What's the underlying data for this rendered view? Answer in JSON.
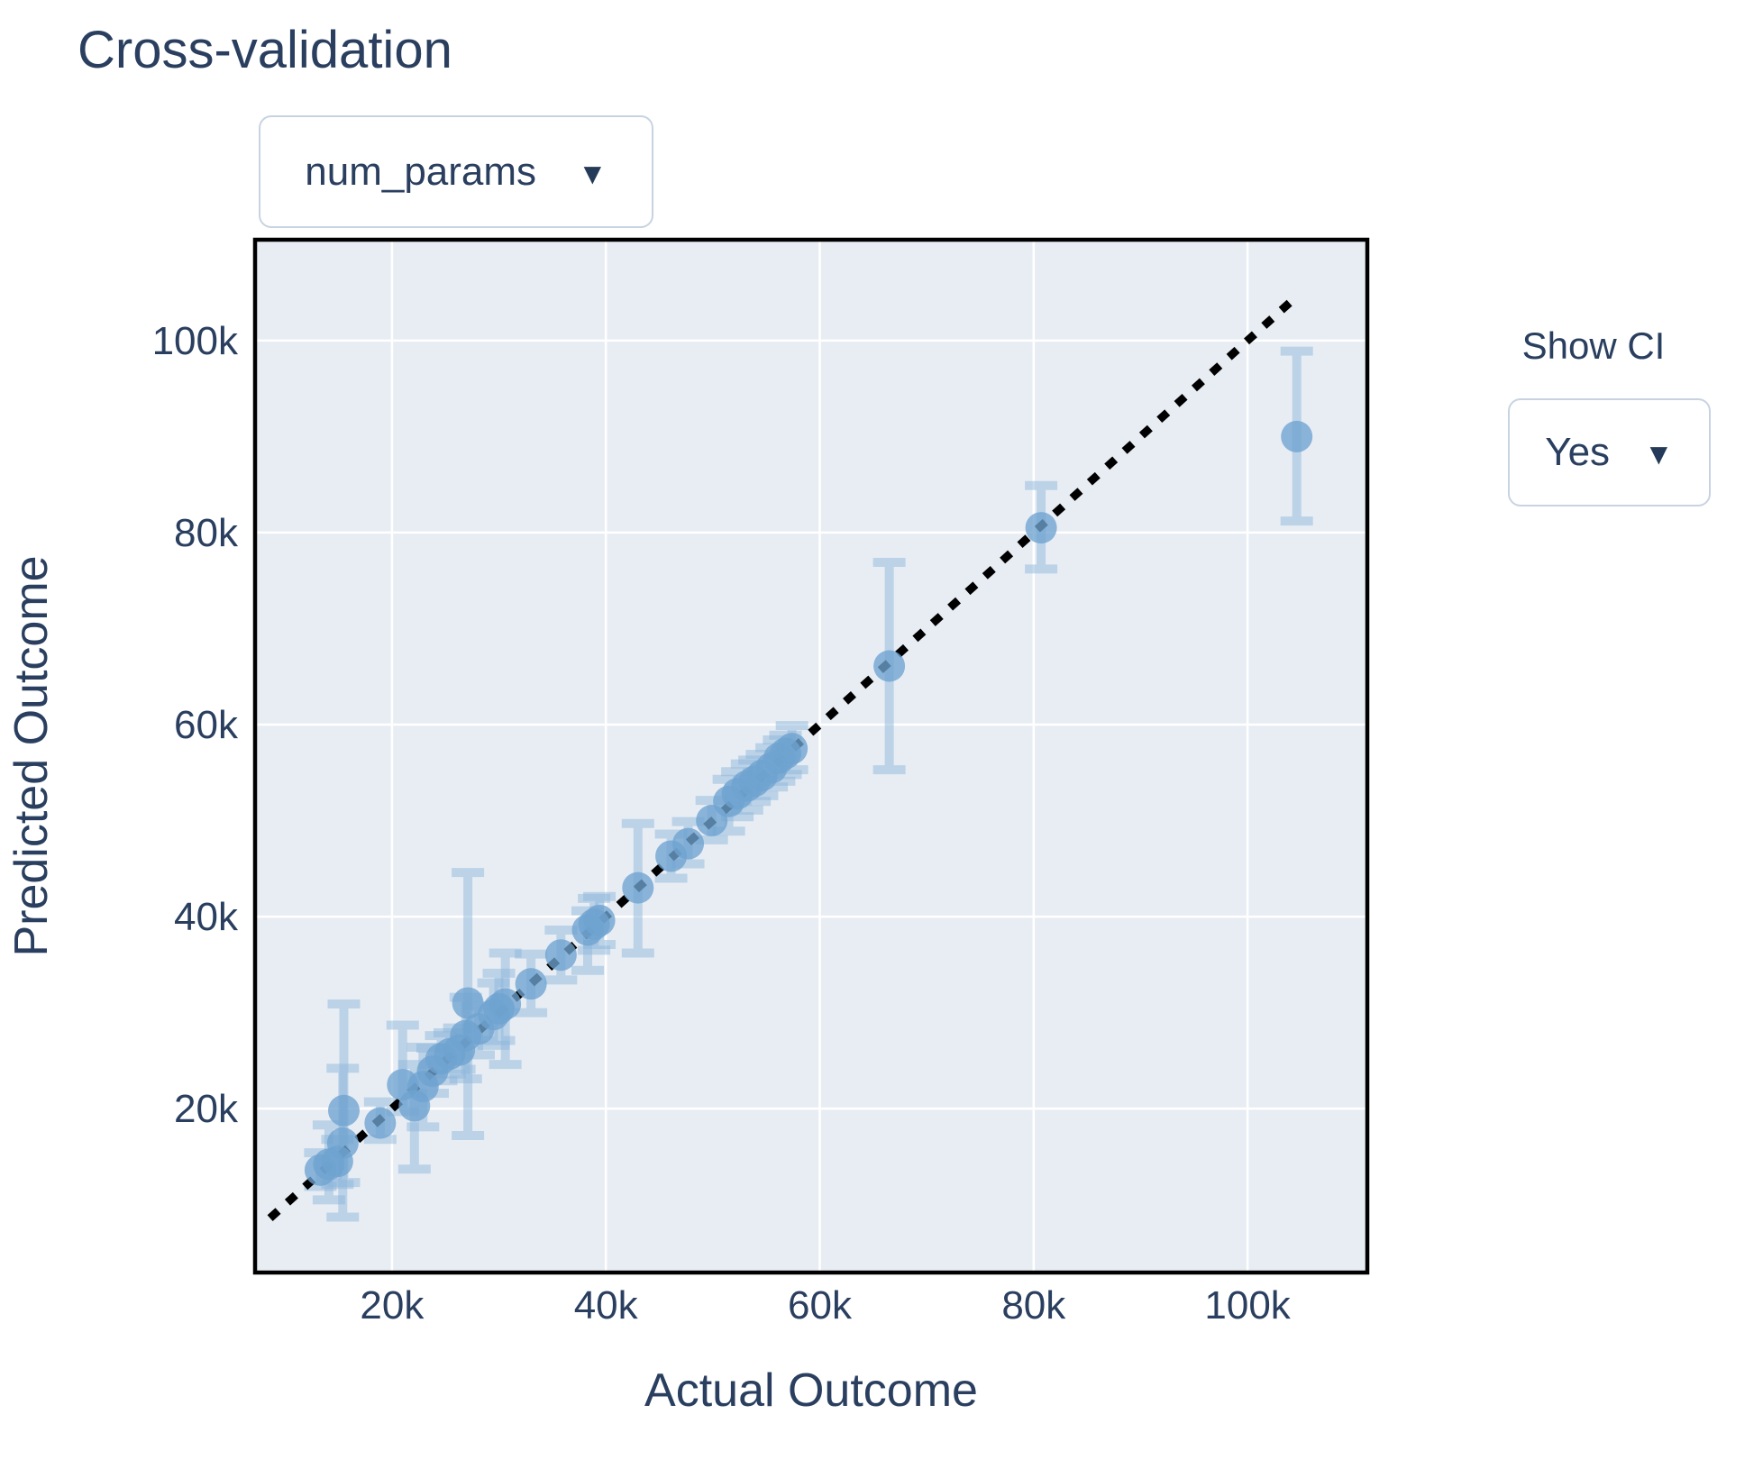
{
  "title": "Cross-validation",
  "controls": {
    "param_dropdown": {
      "value": "num_params",
      "caret": "▼"
    },
    "show_ci": {
      "label": "Show CI",
      "value": "Yes",
      "caret": "▼"
    }
  },
  "chart_data": {
    "type": "scatter",
    "title": "Cross-validation",
    "xlabel": "Actual Outcome",
    "ylabel": "Predicted Outcome",
    "xlim": [
      7200,
      111200
    ],
    "ylim": [
      2930,
      110500
    ],
    "x_tick_values": [
      20000,
      40000,
      60000,
      80000,
      100000
    ],
    "x_tick_labels": [
      "20k",
      "40k",
      "60k",
      "80k",
      "100k"
    ],
    "y_tick_values": [
      20000,
      40000,
      60000,
      80000,
      100000
    ],
    "y_tick_labels": [
      "20k",
      "40k",
      "60k",
      "80k",
      "100k"
    ],
    "grid": true,
    "legend": "none",
    "identity_line": {
      "style": "dotted",
      "color": "#000000",
      "from": 8600,
      "to": 104400
    },
    "colors": {
      "plot_bg": "#e8edf4",
      "grid": "#ffffff",
      "border": "#000000",
      "marker": "#6ea3cf",
      "marker_opacity": 0.78,
      "error_bar": "#8fb8dc",
      "error_opacity": 0.5,
      "text": "#2a3f5f"
    },
    "points": [
      {
        "x": 13300,
        "y": 13600,
        "ci_low": 11900,
        "ci_high": 15400
      },
      {
        "x": 14100,
        "y": 14200,
        "ci_low": 10500,
        "ci_high": 18300
      },
      {
        "x": 14900,
        "y": 14500,
        "ci_low": 12100,
        "ci_high": 16800
      },
      {
        "x": 15400,
        "y": 16400,
        "ci_low": 8700,
        "ci_high": 24200
      },
      {
        "x": 15500,
        "y": 19800,
        "ci_low": 12300,
        "ci_high": 30900
      },
      {
        "x": 18900,
        "y": 18500,
        "ci_low": 16800,
        "ci_high": 20700
      },
      {
        "x": 21000,
        "y": 22500,
        "ci_low": 19700,
        "ci_high": 28700
      },
      {
        "x": 22100,
        "y": 20300,
        "ci_low": 13700,
        "ci_high": 24600
      },
      {
        "x": 22900,
        "y": 22300,
        "ci_low": 18100,
        "ci_high": 26400
      },
      {
        "x": 23800,
        "y": 23900,
        "ci_low": 21600,
        "ci_high": 26300
      },
      {
        "x": 24600,
        "y": 25200,
        "ci_low": 22900,
        "ci_high": 27600
      },
      {
        "x": 25400,
        "y": 25700,
        "ci_low": 23600,
        "ci_high": 27900
      },
      {
        "x": 26300,
        "y": 26100,
        "ci_low": 24100,
        "ci_high": 28400
      },
      {
        "x": 26900,
        "y": 27600,
        "ci_low": 23100,
        "ci_high": 31600
      },
      {
        "x": 27100,
        "y": 31000,
        "ci_low": 17200,
        "ci_high": 44600
      },
      {
        "x": 28100,
        "y": 28300,
        "ci_low": 25600,
        "ci_high": 30700
      },
      {
        "x": 29500,
        "y": 29800,
        "ci_low": 26600,
        "ci_high": 33100
      },
      {
        "x": 30000,
        "y": 30400,
        "ci_low": 27100,
        "ci_high": 34100
      },
      {
        "x": 30600,
        "y": 30900,
        "ci_low": 24600,
        "ci_high": 36200
      },
      {
        "x": 33000,
        "y": 33000,
        "ci_low": 30000,
        "ci_high": 36100
      },
      {
        "x": 35800,
        "y": 36000,
        "ci_low": 33400,
        "ci_high": 38600
      },
      {
        "x": 38300,
        "y": 38600,
        "ci_low": 34400,
        "ci_high": 40600
      },
      {
        "x": 38900,
        "y": 39200,
        "ci_low": 36500,
        "ci_high": 41900
      },
      {
        "x": 39400,
        "y": 39600,
        "ci_low": 37100,
        "ci_high": 42100
      },
      {
        "x": 43000,
        "y": 43000,
        "ci_low": 36200,
        "ci_high": 49700
      },
      {
        "x": 46100,
        "y": 46300,
        "ci_low": 44000,
        "ci_high": 48600
      },
      {
        "x": 47700,
        "y": 47600,
        "ci_low": 45500,
        "ci_high": 49900
      },
      {
        "x": 49900,
        "y": 50000,
        "ci_low": 48000,
        "ci_high": 52100
      },
      {
        "x": 51500,
        "y": 52000,
        "ci_low": 48900,
        "ci_high": 54300
      },
      {
        "x": 52300,
        "y": 52800,
        "ci_low": 50400,
        "ci_high": 55100
      },
      {
        "x": 53200,
        "y": 53600,
        "ci_low": 51100,
        "ci_high": 55900
      },
      {
        "x": 53900,
        "y": 54100,
        "ci_low": 52000,
        "ci_high": 56300
      },
      {
        "x": 54600,
        "y": 54700,
        "ci_low": 52600,
        "ci_high": 56900
      },
      {
        "x": 55500,
        "y": 55500,
        "ci_low": 53500,
        "ci_high": 57600
      },
      {
        "x": 56200,
        "y": 56500,
        "ci_low": 54100,
        "ci_high": 58400
      },
      {
        "x": 56800,
        "y": 57000,
        "ci_low": 54800,
        "ci_high": 58900
      },
      {
        "x": 57400,
        "y": 57500,
        "ci_low": 55300,
        "ci_high": 59900
      },
      {
        "x": 66500,
        "y": 66100,
        "ci_low": 55300,
        "ci_high": 76900
      },
      {
        "x": 80700,
        "y": 80500,
        "ci_low": 76200,
        "ci_high": 84900
      },
      {
        "x": 104600,
        "y": 90000,
        "ci_low": 81200,
        "ci_high": 98900
      }
    ]
  }
}
